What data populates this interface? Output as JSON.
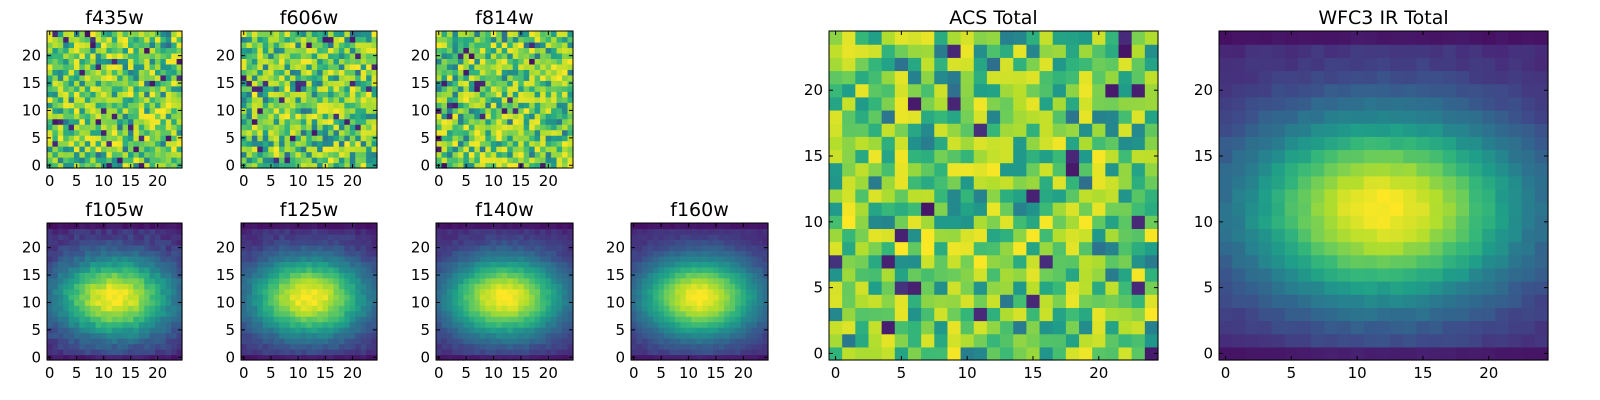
{
  "chart_data": [
    {
      "type": "heatmap",
      "title": "f435w",
      "pattern": "noise",
      "seed": 11,
      "xticks": [
        "0",
        "5",
        "10",
        "15",
        "20"
      ],
      "yticks": [
        "0",
        "5",
        "10",
        "15",
        "20"
      ],
      "xlim": [
        0,
        25
      ],
      "ylim": [
        0,
        25
      ],
      "grid": false
    },
    {
      "type": "heatmap",
      "title": "f606w",
      "pattern": "noise",
      "seed": 23,
      "xticks": [
        "0",
        "5",
        "10",
        "15",
        "20"
      ],
      "yticks": [
        "0",
        "5",
        "10",
        "15",
        "20"
      ],
      "xlim": [
        0,
        25
      ],
      "ylim": [
        0,
        25
      ],
      "grid": false
    },
    {
      "type": "heatmap",
      "title": "f814w",
      "pattern": "noise",
      "seed": 37,
      "xticks": [
        "0",
        "5",
        "10",
        "15",
        "20"
      ],
      "yticks": [
        "0",
        "5",
        "10",
        "15",
        "20"
      ],
      "xlim": [
        0,
        25
      ],
      "ylim": [
        0,
        25
      ],
      "grid": false
    },
    {
      "type": "heatmap",
      "title": "f105w",
      "pattern": "blob",
      "seed": 41,
      "noise": 0.1,
      "xticks": [
        "0",
        "5",
        "10",
        "15",
        "20"
      ],
      "yticks": [
        "0",
        "5",
        "10",
        "15",
        "20"
      ],
      "xlim": [
        0,
        25
      ],
      "ylim": [
        0,
        25
      ],
      "grid": false
    },
    {
      "type": "heatmap",
      "title": "f125w",
      "pattern": "blob",
      "seed": 53,
      "noise": 0.08,
      "xticks": [
        "0",
        "5",
        "10",
        "15",
        "20"
      ],
      "yticks": [
        "0",
        "5",
        "10",
        "15",
        "20"
      ],
      "xlim": [
        0,
        25
      ],
      "ylim": [
        0,
        25
      ],
      "grid": false
    },
    {
      "type": "heatmap",
      "title": "f140w",
      "pattern": "blob",
      "seed": 67,
      "noise": 0.06,
      "xticks": [
        "0",
        "5",
        "10",
        "15",
        "20"
      ],
      "yticks": [
        "0",
        "5",
        "10",
        "15",
        "20"
      ],
      "xlim": [
        0,
        25
      ],
      "ylim": [
        0,
        25
      ],
      "grid": false
    },
    {
      "type": "heatmap",
      "title": "f160w",
      "pattern": "blob",
      "seed": 71,
      "noise": 0.05,
      "xticks": [
        "0",
        "5",
        "10",
        "15",
        "20"
      ],
      "yticks": [
        "0",
        "5",
        "10",
        "15",
        "20"
      ],
      "xlim": [
        0,
        25
      ],
      "ylim": [
        0,
        25
      ],
      "grid": false
    },
    {
      "type": "heatmap",
      "title": "ACS Total",
      "pattern": "noise",
      "seed": 89,
      "xticks": [
        "0",
        "5",
        "10",
        "15",
        "20"
      ],
      "yticks": [
        "0",
        "5",
        "10",
        "15",
        "20"
      ],
      "xlim": [
        0,
        25
      ],
      "ylim": [
        0,
        25
      ],
      "grid": false
    },
    {
      "type": "heatmap",
      "title": "WFC3 IR Total",
      "pattern": "blob",
      "seed": 97,
      "noise": 0.04,
      "xticks": [
        "0",
        "5",
        "10",
        "15",
        "20"
      ],
      "yticks": [
        "0",
        "5",
        "10",
        "15",
        "20"
      ],
      "xlim": [
        0,
        25
      ],
      "ylim": [
        0,
        25
      ],
      "grid": false
    }
  ],
  "colormap": "viridis"
}
